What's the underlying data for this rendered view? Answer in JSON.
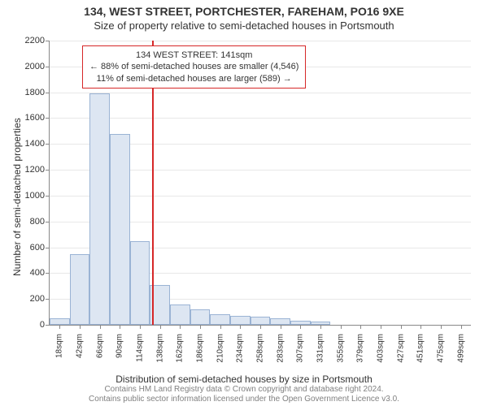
{
  "title_line1": "134, WEST STREET, PORTCHESTER, FAREHAM, PO16 9XE",
  "title_line2": "Size of property relative to semi-detached houses in Portsmouth",
  "y_axis_label": "Number of semi-detached properties",
  "x_axis_label": "Distribution of semi-detached houses by size in Portsmouth",
  "footer_line1": "Contains HM Land Registry data © Crown copyright and database right 2024.",
  "footer_line2": "Contains public sector information licensed under the Open Government Licence v3.0.",
  "chart": {
    "type": "histogram",
    "ylim": [
      0,
      2200
    ],
    "ytick_step": 200,
    "x_ticks": [
      "18sqm",
      "42sqm",
      "66sqm",
      "90sqm",
      "114sqm",
      "138sqm",
      "162sqm",
      "186sqm",
      "210sqm",
      "234sqm",
      "258sqm",
      "283sqm",
      "307sqm",
      "331sqm",
      "355sqm",
      "379sqm",
      "403sqm",
      "427sqm",
      "451sqm",
      "475sqm",
      "499sqm"
    ],
    "values": [
      50,
      550,
      1790,
      1480,
      650,
      310,
      160,
      120,
      80,
      70,
      60,
      50,
      30,
      25,
      0,
      0,
      0,
      0,
      0,
      0,
      0
    ],
    "bar_fill": "#dde6f2",
    "bar_stroke": "#9ab3d4",
    "grid_color": "#e8e8e8",
    "background_color": "#ffffff",
    "reference_line": {
      "position_index": 5.1,
      "color": "#d62728"
    },
    "annotation": {
      "line1": "134 WEST STREET: 141sqm",
      "line2": "← 88% of semi-detached houses are smaller (4,546)",
      "line3": "11% of semi-detached houses are larger (589) →",
      "border_color": "#d62728"
    },
    "title_fontsize": 14,
    "subtitle_fontsize": 13,
    "label_fontsize": 12,
    "tick_fontsize": 11,
    "annotation_fontsize": 11
  }
}
